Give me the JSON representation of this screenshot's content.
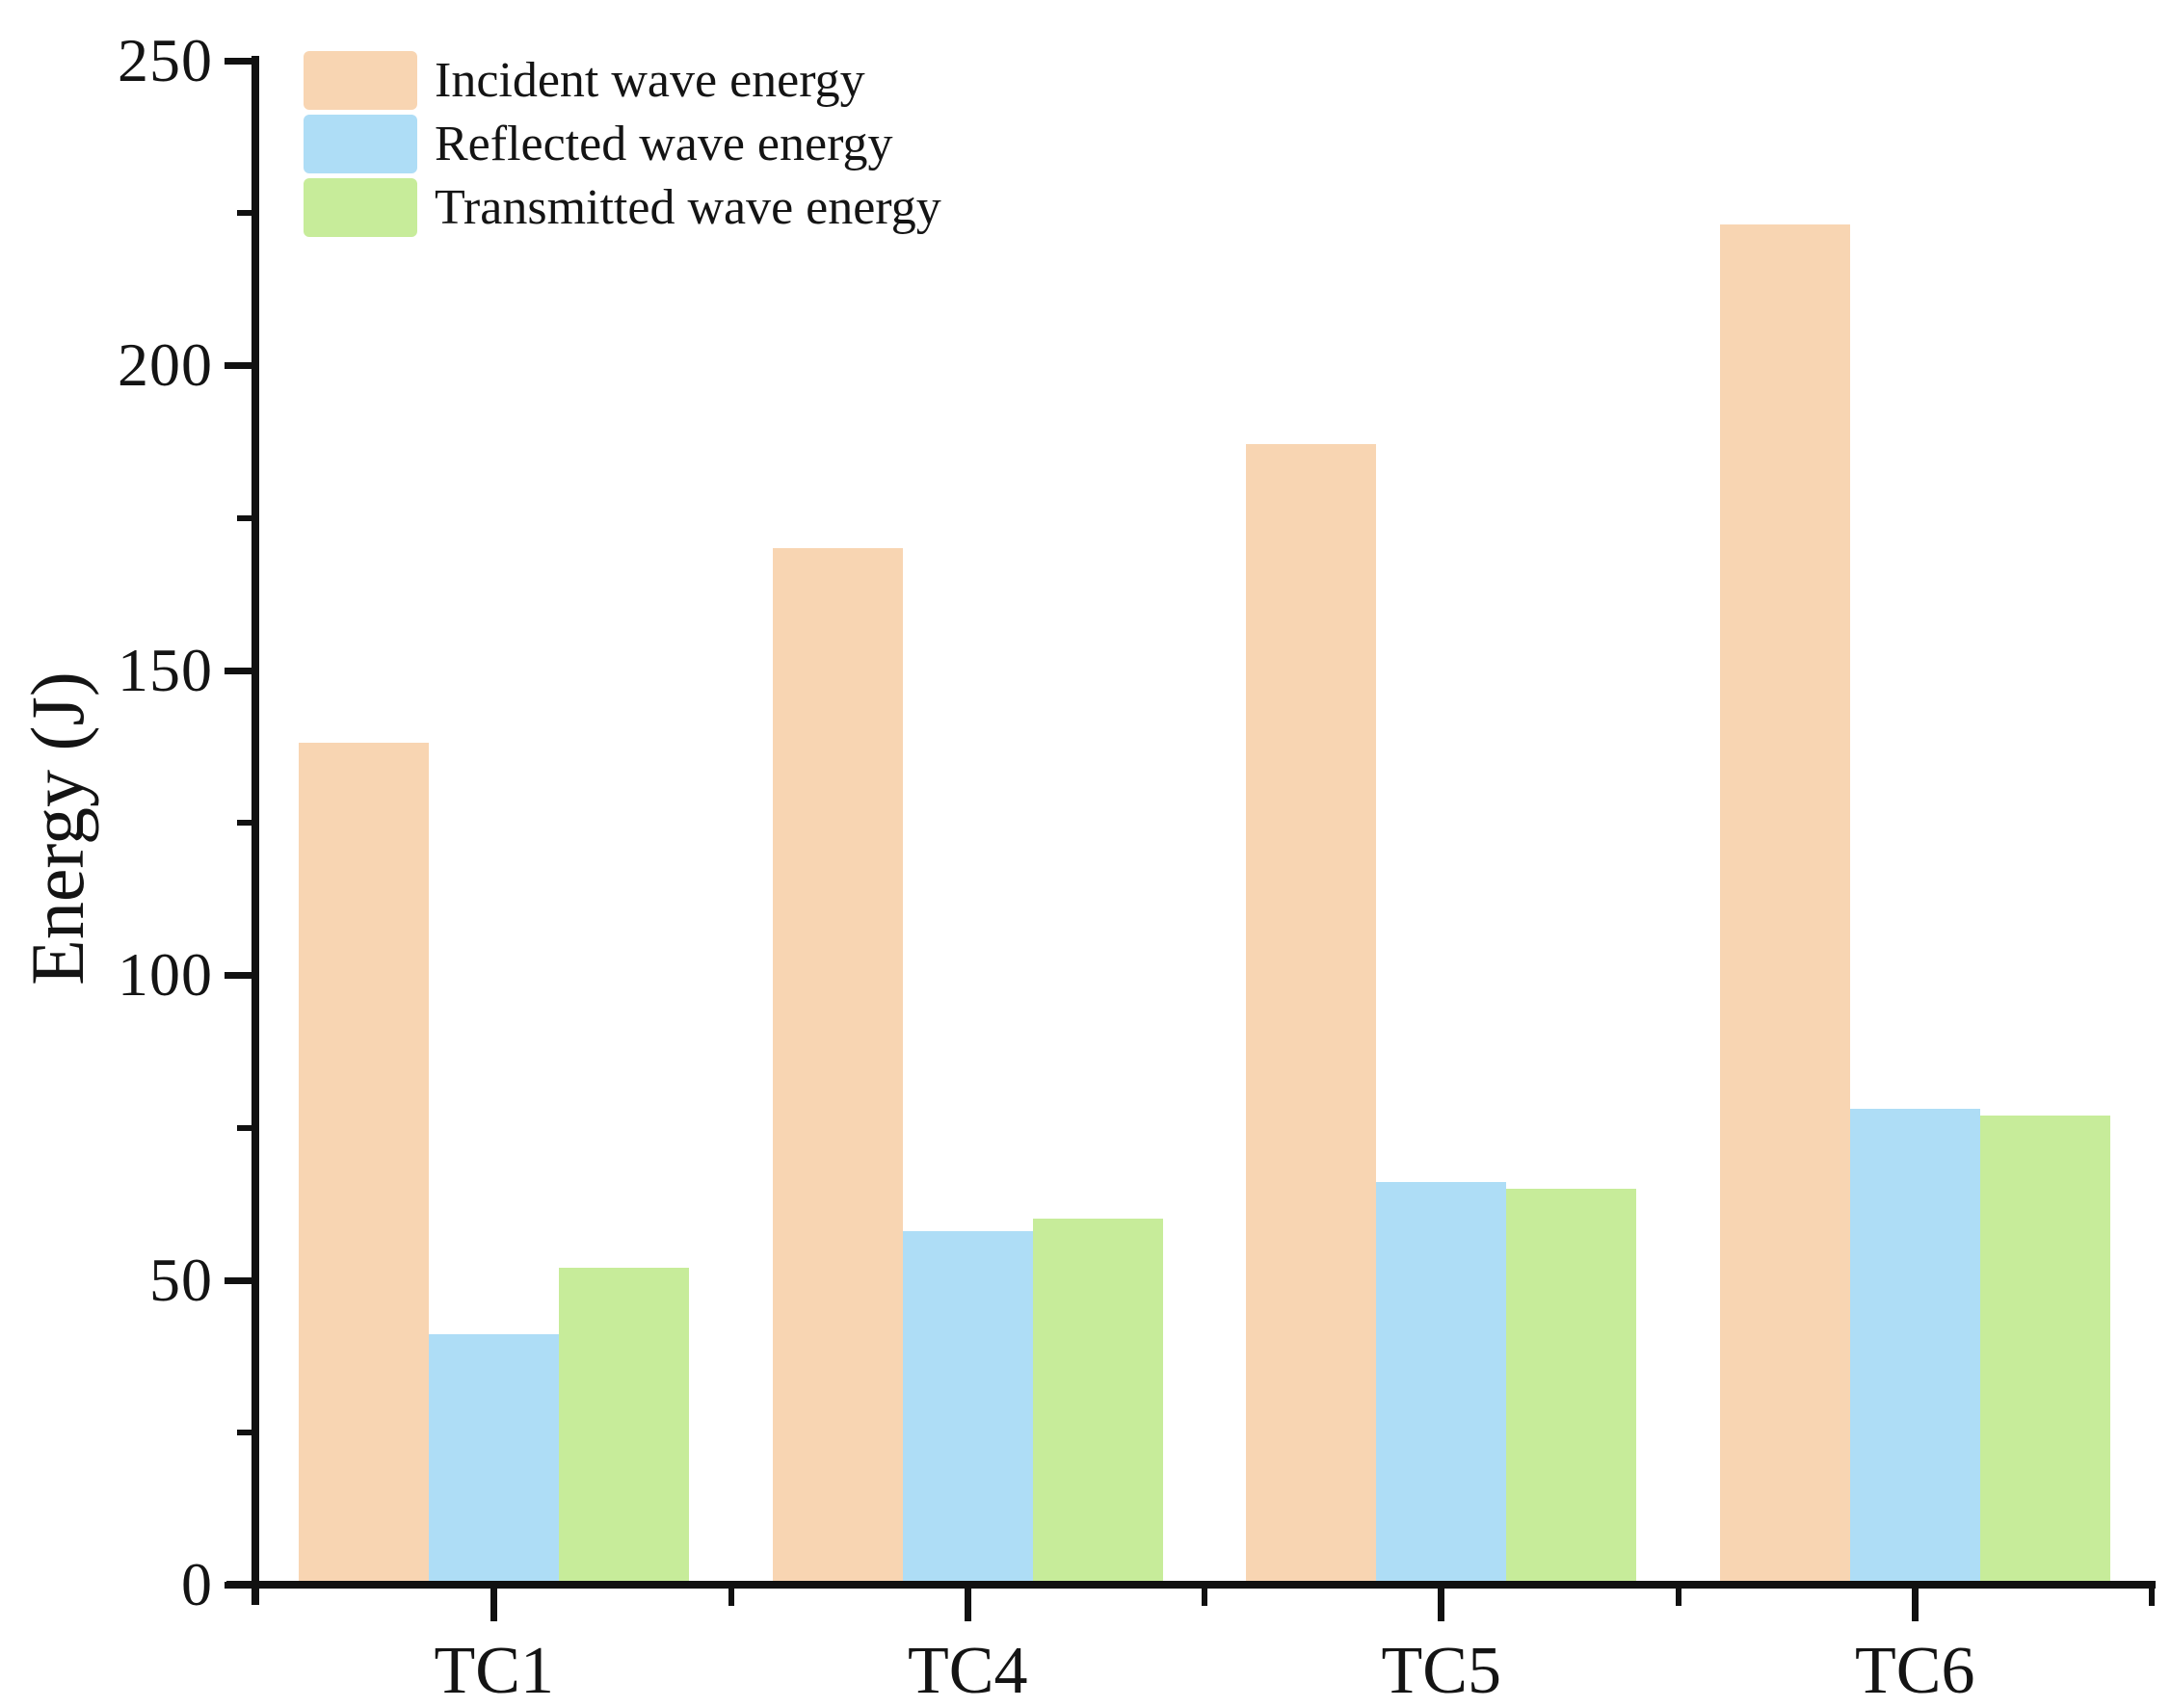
{
  "chart_data": {
    "type": "bar",
    "title": "",
    "categories": [
      "TC1",
      "TC4",
      "TC5",
      "TC6"
    ],
    "series": [
      {
        "name": "Incident wave energy",
        "color": "#F8D5B2",
        "values": [
          138,
          170,
          187,
          223
        ]
      },
      {
        "name": "Reflected wave energy",
        "color": "#AEDDF6",
        "values": [
          41,
          58,
          66,
          78
        ]
      },
      {
        "name": "Transmitted wave energy",
        "color": "#C7EC9A",
        "values": [
          52,
          60,
          65,
          77
        ]
      }
    ],
    "xlabel": "",
    "ylabel": "Energy (J)",
    "ylim": [
      0,
      250
    ],
    "yticks": [
      0,
      50,
      100,
      150,
      200,
      250
    ],
    "yminorticks": [
      25,
      75,
      125,
      175,
      225
    ],
    "legend_position": "top-left",
    "grid": false,
    "axis_color": "#111111",
    "background_color": "#ffffff",
    "bar_colors": {
      "incident": "#F8D5B2",
      "reflected": "#AEDDF6",
      "transmitted": "#C7EC9A"
    }
  }
}
